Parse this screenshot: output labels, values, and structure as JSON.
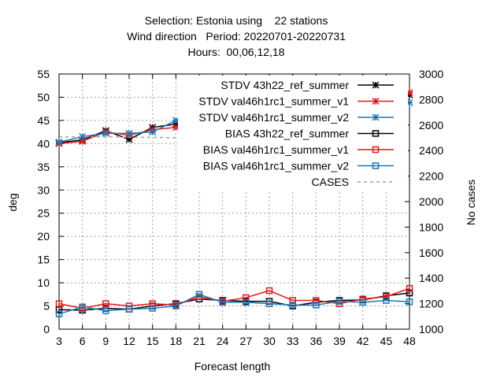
{
  "title_lines": [
    "Selection: Estonia using    22 stations",
    "Wind direction   Period: 20220701-20220731",
    "Hours:  00,06,12,18"
  ],
  "chart_data": {
    "type": "line",
    "xlabel": "Forecast length",
    "ylabel": "deg",
    "y2label": "No cases",
    "xlim": [
      3,
      48
    ],
    "ylim": [
      0,
      55
    ],
    "y2lim": [
      1000,
      3000
    ],
    "x": [
      3,
      6,
      9,
      12,
      15,
      18,
      21,
      24,
      27,
      30,
      33,
      36,
      39,
      42,
      45,
      48
    ],
    "x_ticks": [
      "3",
      "6",
      "9",
      "12",
      "15",
      "18",
      "21",
      "24",
      "27",
      "30",
      "33",
      "36",
      "39",
      "42",
      "45",
      "48"
    ],
    "y_ticks": [
      "0",
      "5",
      "10",
      "15",
      "20",
      "25",
      "30",
      "35",
      "40",
      "45",
      "50",
      "55"
    ],
    "y2_ticks": [
      "1000",
      "1200",
      "1400",
      "1600",
      "1800",
      "2000",
      "2200",
      "2400",
      "2600",
      "2800",
      "3000"
    ],
    "grid": true,
    "legend_position": "top-right",
    "series": [
      {
        "name": "STDV 43h22_ref_summer",
        "legend_text": "STDV 43h22_ref_summer",
        "color": "#000000",
        "marker": "star",
        "axis": "y",
        "values": [
          40.2,
          40.8,
          42.8,
          40.9,
          43.5,
          44.2,
          43.9,
          44.0,
          46.4,
          45.5,
          48.0,
          48.0,
          47.5,
          48.5,
          49.0,
          50.5
        ]
      },
      {
        "name": "STDV val46h1rc1_summer_v1",
        "legend_text": "STDV val46h1rc1_summer_v1",
        "color": "#e41a1c",
        "marker": "star",
        "axis": "y",
        "values": [
          40.0,
          40.5,
          42.5,
          41.8,
          43.0,
          43.5,
          43.5,
          44.5,
          46.0,
          45.0,
          48.0,
          47.5,
          49.5,
          48.5,
          50.5,
          51.0
        ]
      },
      {
        "name": "STDV val46h1rc1_summer_v2",
        "legend_text": "STDV val46h1rc1_summer_v2",
        "color": "#1f77b4",
        "marker": "star",
        "axis": "y",
        "values": [
          40.3,
          41.5,
          42.2,
          42.2,
          42.5,
          45.0,
          43.8,
          44.5,
          46.0,
          47.0,
          48.0,
          47.0,
          49.5,
          48.5,
          49.5,
          48.8
        ]
      },
      {
        "name": "BIAS 43h22_ref_summer",
        "legend_text": "BIAS 43h22_ref_summer",
        "color": "#000000",
        "marker": "square",
        "axis": "y",
        "values": [
          4.2,
          4.1,
          4.5,
          4.3,
          5.0,
          5.5,
          6.5,
          6.2,
          6.0,
          6.0,
          5.0,
          5.8,
          6.2,
          6.3,
          7.2,
          7.8
        ]
      },
      {
        "name": "BIAS val46h1rc1_summer_v1",
        "legend_text": "BIAS val46h1rc1_summer_v1",
        "color": "#e41a1c",
        "marker": "square",
        "axis": "y",
        "values": [
          5.5,
          4.5,
          5.5,
          5.0,
          5.5,
          5.2,
          7.0,
          6.0,
          6.8,
          8.3,
          6.2,
          6.2,
          5.5,
          6.5,
          7.0,
          8.8
        ]
      },
      {
        "name": "BIAS val46h1rc1_summer_v2",
        "legend_text": "BIAS val46h1rc1_summer_v2",
        "color": "#1f77b4",
        "marker": "square",
        "axis": "y",
        "values": [
          3.3,
          4.8,
          4.0,
          4.3,
          4.5,
          5.0,
          7.5,
          5.8,
          5.8,
          5.5,
          5.2,
          5.2,
          6.0,
          5.8,
          6.2,
          5.9
        ]
      },
      {
        "name": "CASES",
        "legend_text": "CASES",
        "color": "#a0a0a0",
        "marker": "none",
        "dashed": true,
        "axis": "y2",
        "values": [
          2508,
          2508,
          2508,
          2504,
          2504,
          2500,
          2496,
          2496,
          2496,
          2496,
          2496,
          2496,
          2480,
          2440,
          2410,
          2390
        ]
      }
    ]
  }
}
